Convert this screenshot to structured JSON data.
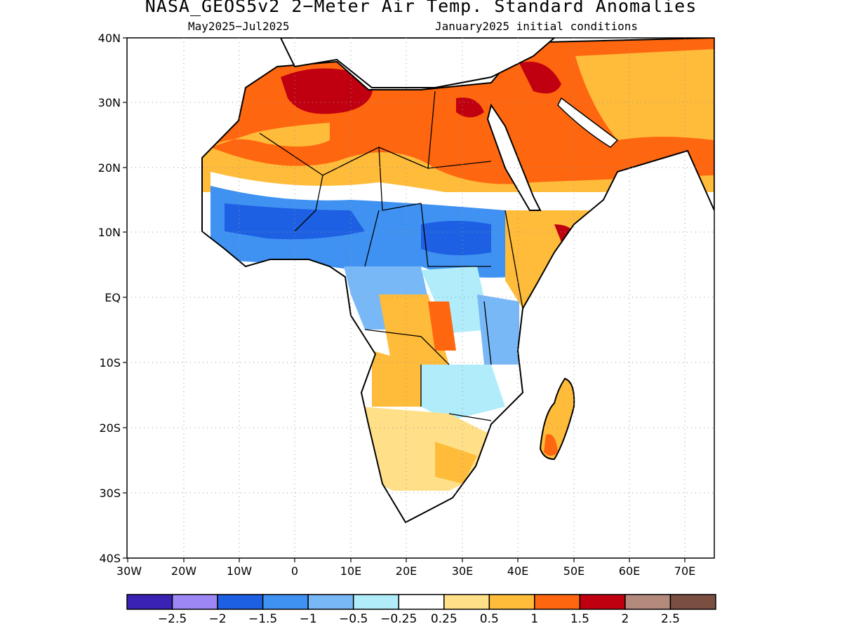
{
  "title": "NASA_GEOS5v2 2−Meter Air Temp. Standard Anomalies",
  "period": "May2025−Jul2025",
  "init": "January2025 initial conditions",
  "lat_labels": [
    "40N",
    "30N",
    "20N",
    "10N",
    "EQ",
    "10S",
    "20S",
    "30S",
    "40S"
  ],
  "lon_labels": [
    "30W",
    "20W",
    "10W",
    "0",
    "10E",
    "20E",
    "30E",
    "40E",
    "50E",
    "60E",
    "70E"
  ],
  "colorbar": {
    "colors": [
      "#3a23b4",
      "#9c87f5",
      "#1d60e3",
      "#3f92f2",
      "#78b8f7",
      "#b0ecfa",
      "#ffffff",
      "#ffe088",
      "#ffbb3a",
      "#ff6610",
      "#c00010",
      "#b48a7c",
      "#7a4f42"
    ],
    "labels": [
      "−2.5",
      "−2",
      "−1.5",
      "−1",
      "−0.5",
      "−0.25",
      "0.25",
      "0.5",
      "1",
      "1.5",
      "2",
      "2.5"
    ]
  },
  "colors": {
    "strong_warm": "#c00010",
    "warm": "#ff6610",
    "moderate_warm": "#ffbb3a",
    "weak_warm": "#ffe088",
    "cool": "#3f92f2",
    "strong_cool": "#1d60e3"
  }
}
